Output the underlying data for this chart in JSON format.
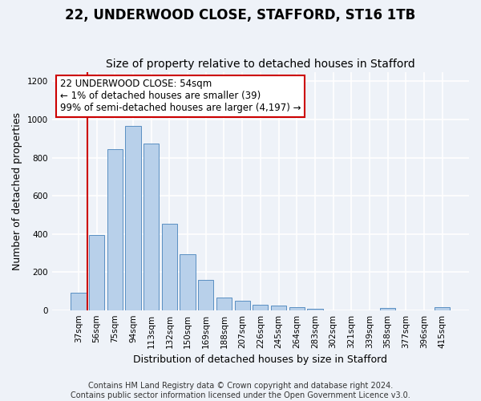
{
  "title": "22, UNDERWOOD CLOSE, STAFFORD, ST16 1TB",
  "subtitle": "Size of property relative to detached houses in Stafford",
  "xlabel": "Distribution of detached houses by size in Stafford",
  "ylabel": "Number of detached properties",
  "categories": [
    "37sqm",
    "56sqm",
    "75sqm",
    "94sqm",
    "113sqm",
    "132sqm",
    "150sqm",
    "169sqm",
    "188sqm",
    "207sqm",
    "226sqm",
    "245sqm",
    "264sqm",
    "283sqm",
    "302sqm",
    "321sqm",
    "339sqm",
    "358sqm",
    "377sqm",
    "396sqm",
    "415sqm"
  ],
  "values": [
    90,
    395,
    845,
    965,
    875,
    455,
    295,
    160,
    65,
    50,
    30,
    25,
    15,
    5,
    0,
    0,
    0,
    10,
    0,
    0,
    15
  ],
  "bar_color": "#b8d0ea",
  "bar_edge_color": "#5a8fc2",
  "red_line_x": 0.5,
  "highlight_color": "#cc0000",
  "annotation_line1": "22 UNDERWOOD CLOSE: 54sqm",
  "annotation_line2": "← 1% of detached houses are smaller (39)",
  "annotation_line3": "99% of semi-detached houses are larger (4,197) →",
  "annotation_box_color": "#ffffff",
  "annotation_box_edge": "#cc0000",
  "ylim": [
    0,
    1250
  ],
  "yticks": [
    0,
    200,
    400,
    600,
    800,
    1000,
    1200
  ],
  "footer_line1": "Contains HM Land Registry data © Crown copyright and database right 2024.",
  "footer_line2": "Contains public sector information licensed under the Open Government Licence v3.0.",
  "background_color": "#eef2f8",
  "grid_color": "#ffffff",
  "title_fontsize": 12,
  "subtitle_fontsize": 10,
  "axis_label_fontsize": 9,
  "tick_fontsize": 7.5,
  "annotation_fontsize": 8.5,
  "footer_fontsize": 7
}
